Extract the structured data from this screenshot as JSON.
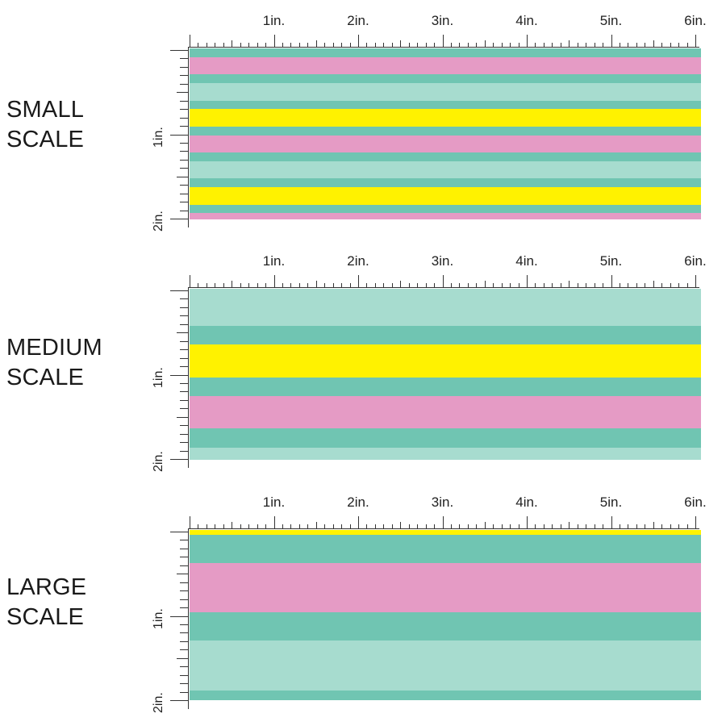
{
  "colors": {
    "teal": "#70c5b2",
    "mint": "#a7dccf",
    "pink": "#e59bc5",
    "yellow": "#fff200",
    "ruler": "#333333"
  },
  "ruler": {
    "top_labels": [
      "1in.",
      "2in.",
      "3in.",
      "4in.",
      "5in.",
      "6in."
    ],
    "side_labels": [
      "1in.",
      "2in."
    ]
  },
  "panels": [
    {
      "id": "small",
      "label_line1": "SMALL",
      "label_line2": "SCALE",
      "stripes": [
        [
          "teal",
          1
        ],
        [
          "pink",
          2
        ],
        [
          "teal",
          1
        ],
        [
          "mint",
          2
        ],
        [
          "teal",
          1
        ],
        [
          "yellow",
          2
        ],
        [
          "teal",
          1
        ],
        [
          "pink",
          2
        ],
        [
          "teal",
          1
        ],
        [
          "mint",
          2
        ],
        [
          "teal",
          1
        ],
        [
          "yellow",
          2
        ],
        [
          "teal",
          1
        ],
        [
          "pink",
          0.7
        ]
      ]
    },
    {
      "id": "medium",
      "label_line1": "MEDIUM",
      "label_line2": "SCALE",
      "stripes": [
        [
          "mint",
          4.5
        ],
        [
          "teal",
          2.3
        ],
        [
          "yellow",
          4.0
        ],
        [
          "teal",
          2.3
        ],
        [
          "pink",
          4.0
        ],
        [
          "teal",
          2.3
        ],
        [
          "mint",
          1.5
        ]
      ]
    },
    {
      "id": "large",
      "label_line1": "LARGE",
      "label_line2": "SCALE",
      "stripes": [
        [
          "yellow",
          0.6
        ],
        [
          "teal",
          3.5
        ],
        [
          "pink",
          6.0
        ],
        [
          "teal",
          3.5
        ],
        [
          "mint",
          6.1
        ],
        [
          "teal",
          1.2
        ]
      ]
    }
  ]
}
